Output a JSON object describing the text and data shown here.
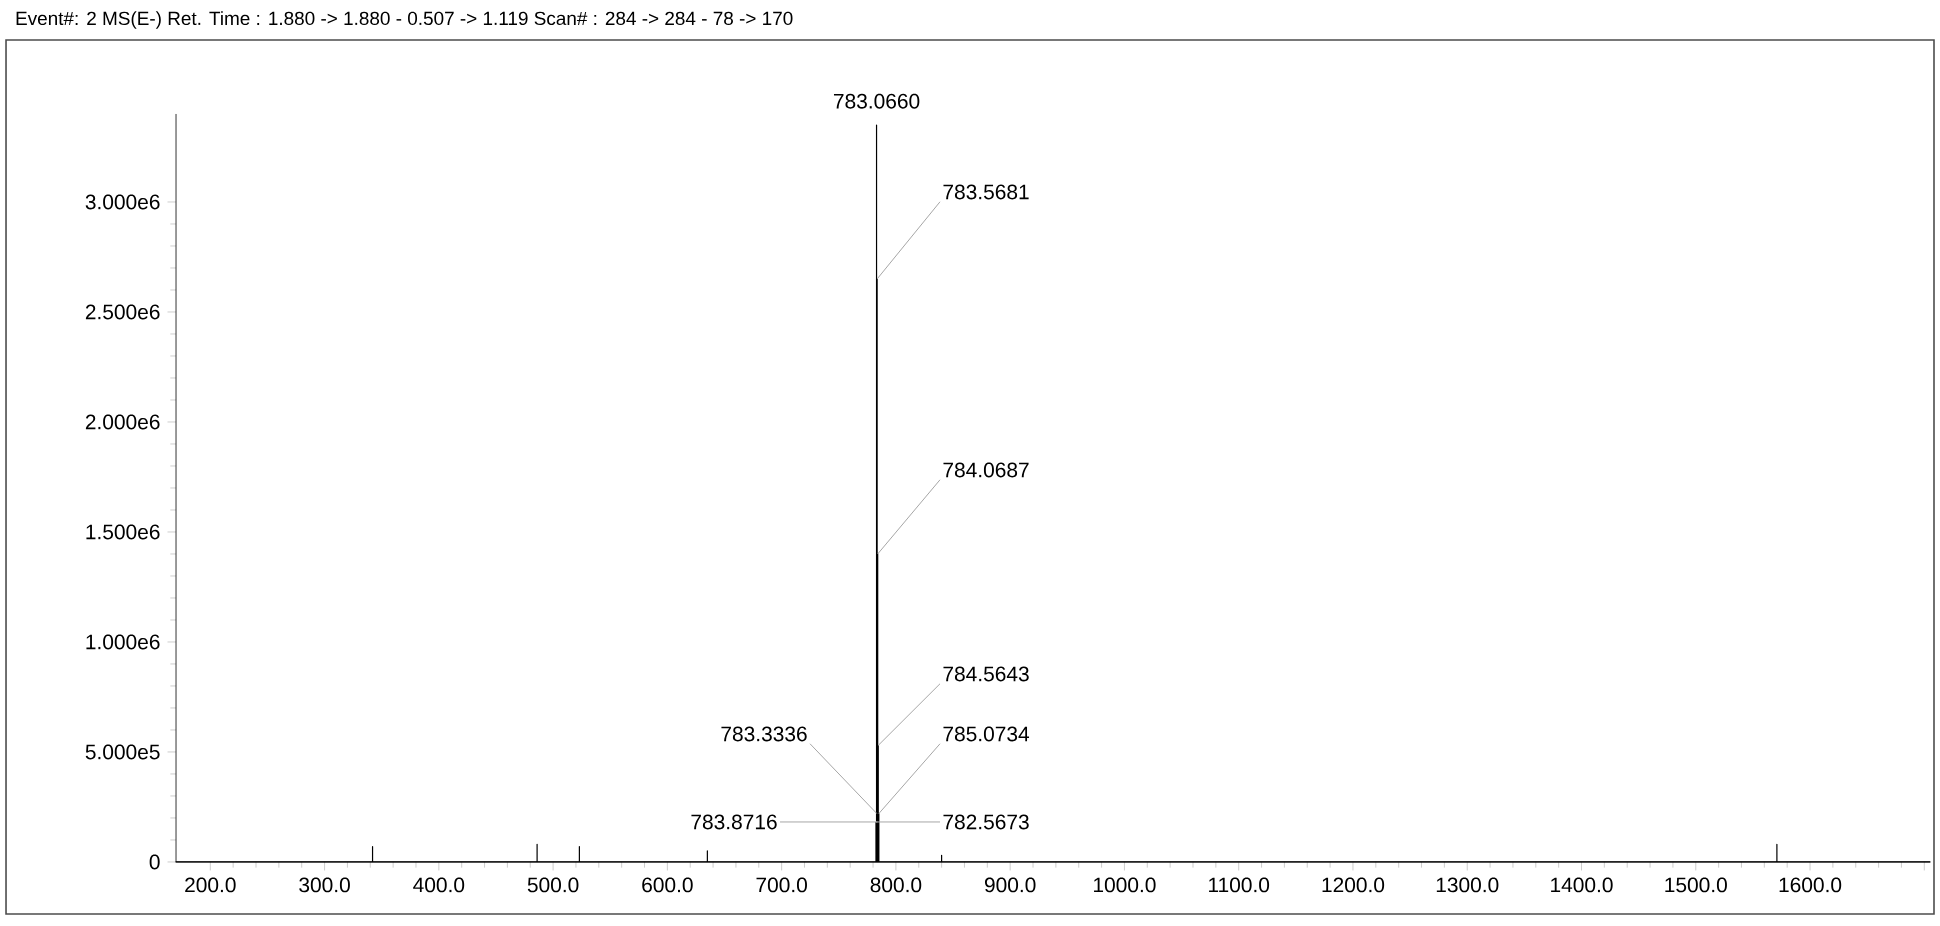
{
  "chart_data": {
    "type": "line",
    "title": "Event#: 2 MS(E-)   Ret. Time : 1.880 -> 1.880 - 0.507 -> 1.119   Scan# : 284 -> 284 - 78 -> 170",
    "x": [
      170,
      342,
      342,
      342,
      486,
      486,
      486,
      523,
      523,
      523,
      635,
      635,
      635,
      782.5673,
      782.5673,
      782.5673,
      783.066,
      783.066,
      783.066,
      783.3336,
      783.3336,
      783.3336,
      783.5681,
      783.5681,
      783.5681,
      783.8716,
      783.8716,
      783.8716,
      784.0687,
      784.0687,
      784.0687,
      784.5643,
      784.5643,
      784.5643,
      785.0734,
      785.0734,
      785.0734,
      840,
      840,
      840,
      1571,
      1571,
      1571,
      1705
    ],
    "values": [
      0,
      0,
      70000,
      0,
      0,
      80000,
      0,
      0,
      70000,
      0,
      0,
      50000,
      0,
      0,
      180000,
      0,
      0,
      3350000,
      0,
      0,
      220000,
      0,
      0,
      2650000,
      0,
      0,
      180000,
      0,
      0,
      1400000,
      0,
      0,
      530000,
      0,
      0,
      220000,
      0,
      0,
      30000,
      0,
      0,
      80000,
      0,
      0
    ],
    "color": "#000000",
    "xlim": [
      170,
      1705
    ],
    "ylim": [
      0,
      3400000
    ],
    "xticks": [
      {
        "value": 200,
        "label": "200.0"
      },
      {
        "value": 300,
        "label": "300.0"
      },
      {
        "value": 400,
        "label": "400.0"
      },
      {
        "value": 500,
        "label": "500.0"
      },
      {
        "value": 600,
        "label": "600.0"
      },
      {
        "value": 700,
        "label": "700.0"
      },
      {
        "value": 800,
        "label": "800.0"
      },
      {
        "value": 900,
        "label": "900.0"
      },
      {
        "value": 1000,
        "label": "1000.0"
      },
      {
        "value": 1100,
        "label": "1100.0"
      },
      {
        "value": 1200,
        "label": "1200.0"
      },
      {
        "value": 1300,
        "label": "1300.0"
      },
      {
        "value": 1400,
        "label": "1400.0"
      },
      {
        "value": 1500,
        "label": "1500.0"
      },
      {
        "value": 1600,
        "label": "1600.0"
      },
      {
        "value": 1700,
        "label": null
      }
    ],
    "yticks": [
      0,
      {
        "value": 500000,
        "label": "5.000e5"
      },
      {
        "value": 1000000,
        "label": "1.000e6"
      },
      {
        "value": 1500000,
        "label": "1.500e6"
      },
      {
        "value": 2000000,
        "label": "2.000e6"
      },
      {
        "value": 2500000,
        "label": "2.500e6"
      },
      {
        "value": 3000000,
        "label": "3.000e6"
      }
    ],
    "annotations": [
      {
        "text": "783.0660",
        "x": 783.066,
        "y": 3350000
      },
      {
        "text": "783.5681",
        "x": 783.5681,
        "y": 2650000
      },
      {
        "text": "784.0687",
        "x": 784.0687,
        "y": 1400000
      },
      {
        "text": "784.5643",
        "x": 784.5643,
        "y": 530000
      },
      {
        "text": "785.0734",
        "x": 785.0734,
        "y": 220000
      },
      {
        "text": "783.3336",
        "x": 783.3336,
        "y": 220000
      },
      {
        "text": "783.8716",
        "x": 783.8716,
        "y": 180000
      },
      {
        "text": "782.5673",
        "x": 782.5673,
        "y": 180000
      }
    ],
    "grid": false
  }
}
